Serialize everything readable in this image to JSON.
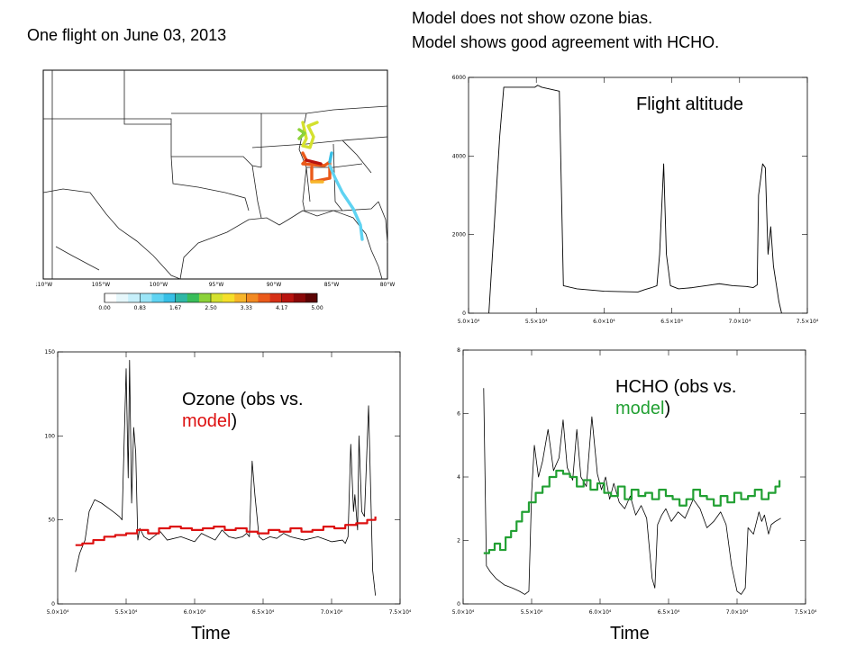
{
  "header": {
    "flight": "One flight on June 03, 2013",
    "note_line1": "Model does not show ozone bias.",
    "note_line2": "Model shows good agreement with HCHO."
  },
  "map": {
    "lon_labels": [
      "110°W",
      "105°W",
      "100°W",
      "95°W",
      "90°W",
      "85°W",
      "80°W"
    ],
    "colorbar_labels": [
      "0.00",
      "0.83",
      "1.67",
      "2.50",
      "3.33",
      "4.17",
      "5.00"
    ],
    "colorbar_colors": [
      "#ffffff",
      "#e6f7fb",
      "#c6effa",
      "#9be5f7",
      "#5fd3f2",
      "#37bfe6",
      "#2fb7a6",
      "#39bd5a",
      "#8cd23a",
      "#d4e12f",
      "#f5df2a",
      "#f7b52a",
      "#f28a22",
      "#ea5a1a",
      "#d63016",
      "#b8140f",
      "#8a0808",
      "#5c0404"
    ],
    "note": ""
  },
  "labels": {
    "altitude": "Flight altitude",
    "ozone_prefix": "Ozone (obs vs.",
    "ozone_model": "model",
    "ozone_suffix": ")",
    "hcho_prefix": "HCHO (obs vs.",
    "hcho_model": "model",
    "hcho_suffix": ")",
    "time_left": "Time",
    "time_right": "Time"
  },
  "colors": {
    "ozone_model": "#dd1111",
    "hcho_model": "#22a033",
    "obs": "#000000"
  },
  "chart_data": [
    {
      "id": "altitude",
      "type": "line",
      "title": "Flight altitude",
      "xlim": [
        50000,
        75000
      ],
      "ylim": [
        0,
        6000
      ],
      "x_ticks": [
        50000,
        55000,
        60000,
        65000,
        70000,
        75000
      ],
      "x_tick_labels": [
        "5.0×10⁴",
        "5.5×10⁴",
        "6.0×10⁴",
        "6.5×10⁴",
        "7.0×10⁴",
        "7.5×10⁴"
      ],
      "y_ticks": [
        0,
        2000,
        4000,
        6000
      ],
      "y_tick_labels": [
        "0",
        "2000",
        "4000",
        "6000"
      ],
      "series": [
        {
          "x": [
            51500,
            52300,
            52600,
            54900,
            55100,
            55400,
            56700,
            57000,
            58000,
            60000,
            61000,
            62500,
            63000,
            63500,
            63900,
            64100,
            64400,
            64600,
            64900,
            65500,
            66500,
            67500,
            68500,
            69500,
            70500,
            71000,
            71300,
            71400,
            71700,
            71900,
            72100,
            72300,
            72500,
            72900,
            73100
          ],
          "y": [
            0,
            4500,
            5750,
            5750,
            5800,
            5750,
            5650,
            700,
            620,
            560,
            550,
            540,
            600,
            650,
            700,
            1500,
            3800,
            1500,
            700,
            620,
            650,
            700,
            750,
            700,
            680,
            650,
            720,
            3000,
            3800,
            3700,
            1500,
            2200,
            1200,
            300,
            0
          ]
        }
      ]
    },
    {
      "id": "ozone",
      "type": "line",
      "xlim": [
        50000,
        75000
      ],
      "ylim": [
        0,
        150
      ],
      "x_ticks": [
        50000,
        55000,
        60000,
        65000,
        70000,
        75000
      ],
      "x_tick_labels": [
        "5.0×10⁴",
        "5.5×10⁴",
        "6.0×10⁴",
        "6.5×10⁴",
        "7.0×10⁴",
        "7.5×10⁴"
      ],
      "y_ticks": [
        0,
        50,
        100,
        150
      ],
      "y_tick_labels": [
        "0",
        "50",
        "100",
        "150"
      ],
      "series": [
        {
          "x": [
            51300,
            51600,
            52000,
            52300,
            52700,
            53200,
            53700,
            54200,
            54500,
            54700,
            55000,
            55150,
            55250,
            55400,
            55550,
            55700,
            55850,
            56000,
            56300,
            56700,
            57000,
            57500,
            58000,
            59000,
            60000,
            60500,
            61000,
            61500,
            62000,
            62500,
            63000,
            63500,
            63800,
            64000,
            64200,
            64400,
            64700,
            65000,
            65500,
            66000,
            66500,
            67000,
            68000,
            69000,
            70000,
            70800,
            71000,
            71200,
            71400,
            71600,
            71700,
            71900,
            72000,
            72200,
            72400,
            72700,
            73000,
            73200
          ],
          "y": [
            19,
            30,
            38,
            55,
            62,
            60,
            57,
            54,
            52,
            50,
            140,
            75,
            145,
            60,
            105,
            90,
            38,
            45,
            40,
            38,
            40,
            43,
            38,
            40,
            37,
            42,
            40,
            38,
            44,
            40,
            39,
            40,
            42,
            40,
            85,
            65,
            40,
            38,
            40,
            39,
            42,
            40,
            38,
            40,
            37,
            38,
            36,
            40,
            95,
            55,
            65,
            44,
            100,
            55,
            52,
            118,
            20,
            5
          ]
        },
        {
          "step": true,
          "x": [
            51300,
            51800,
            52600,
            53400,
            54200,
            55000,
            55800,
            56600,
            57400,
            58200,
            59000,
            59800,
            60600,
            61400,
            62200,
            63000,
            63800,
            64600,
            65400,
            66200,
            67000,
            67800,
            68600,
            69400,
            70200,
            71000,
            71800,
            72600,
            73200
          ],
          "y": [
            35,
            36,
            38,
            40,
            41,
            42,
            44,
            42,
            45,
            46,
            45,
            44,
            45,
            46,
            44,
            45,
            43,
            42,
            44,
            43,
            45,
            43,
            44,
            46,
            45,
            47,
            48,
            50,
            52
          ]
        }
      ]
    },
    {
      "id": "hcho",
      "type": "line",
      "xlim": [
        50000,
        75000
      ],
      "ylim": [
        0,
        8
      ],
      "x_ticks": [
        50000,
        55000,
        60000,
        65000,
        70000,
        75000
      ],
      "x_tick_labels": [
        "5.0×10⁴",
        "5.5×10⁴",
        "6.0×10⁴",
        "6.5×10⁴",
        "7.0×10⁴",
        "7.5×10⁴"
      ],
      "y_ticks": [
        0,
        2,
        4,
        6,
        8
      ],
      "y_tick_labels": [
        "0",
        "2",
        "4",
        "6",
        "8"
      ],
      "series": [
        {
          "x": [
            51500,
            51700,
            52000,
            52400,
            53000,
            53600,
            54100,
            54500,
            54800,
            55000,
            55200,
            55500,
            55800,
            56200,
            56600,
            57000,
            57300,
            57600,
            58000,
            58300,
            58600,
            59000,
            59400,
            59800,
            60100,
            60400,
            60700,
            61000,
            61400,
            61800,
            62200,
            62600,
            63000,
            63400,
            63800,
            64000,
            64200,
            64500,
            64800,
            65200,
            65700,
            66200,
            66800,
            67300,
            67800,
            68300,
            68800,
            69200,
            69600,
            70000,
            70300,
            70600,
            70800,
            71200,
            71600,
            71800,
            72000,
            72300,
            72500,
            72800,
            73200
          ],
          "y": [
            6.8,
            1.2,
            1.0,
            0.8,
            0.6,
            0.5,
            0.4,
            0.3,
            0.4,
            3.5,
            5.0,
            4.0,
            4.5,
            5.5,
            4.2,
            4.6,
            5.8,
            4.3,
            3.9,
            5.5,
            4.0,
            3.7,
            5.9,
            4.1,
            3.6,
            4.0,
            3.3,
            3.8,
            3.2,
            3.0,
            3.4,
            2.8,
            3.1,
            2.7,
            0.8,
            0.5,
            2.5,
            2.8,
            3.0,
            2.6,
            2.9,
            2.7,
            3.3,
            3.0,
            2.4,
            2.6,
            2.9,
            2.5,
            1.2,
            0.4,
            0.3,
            0.5,
            2.4,
            2.2,
            2.9,
            2.6,
            2.8,
            2.2,
            2.5,
            2.6,
            2.7
          ]
        },
        {
          "step": true,
          "x": [
            51500,
            51900,
            52300,
            52700,
            53100,
            53500,
            53900,
            54300,
            54800,
            55300,
            55800,
            56300,
            56800,
            57300,
            57800,
            58300,
            58800,
            59300,
            59800,
            60300,
            60800,
            61300,
            61800,
            62300,
            62800,
            63300,
            63800,
            64300,
            64800,
            65300,
            65800,
            66300,
            66800,
            67300,
            67800,
            68300,
            68800,
            69300,
            69800,
            70300,
            70800,
            71300,
            71800,
            72300,
            72800,
            73100
          ],
          "y": [
            1.6,
            1.7,
            1.9,
            1.7,
            2.1,
            2.3,
            2.6,
            2.9,
            3.2,
            3.5,
            3.7,
            4.0,
            4.2,
            4.1,
            4.0,
            3.7,
            3.9,
            3.6,
            3.8,
            3.5,
            3.4,
            3.7,
            3.3,
            3.6,
            3.4,
            3.5,
            3.3,
            3.6,
            3.4,
            3.3,
            3.1,
            3.3,
            3.6,
            3.4,
            3.3,
            3.1,
            3.4,
            3.2,
            3.5,
            3.3,
            3.4,
            3.6,
            3.3,
            3.5,
            3.7,
            3.9
          ]
        }
      ]
    }
  ]
}
